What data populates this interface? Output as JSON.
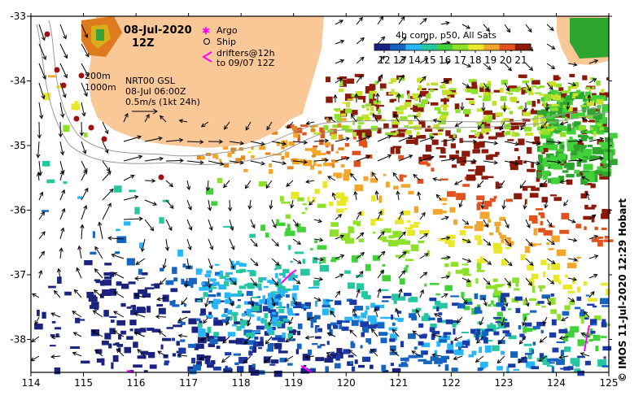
{
  "title": {
    "date": "08-Jul-2020",
    "time": "12Z"
  },
  "legend": {
    "argo": "Argo",
    "ship": "Ship",
    "drifters_line1": "drifters@12h",
    "drifters_line2": "to 09/07 12Z",
    "argo_color": "#ff00ff",
    "drifter_color": "#ff00ff"
  },
  "colorbar": {
    "title": "4h comp, p50, All Sats",
    "ticks": [
      "12",
      "13",
      "14",
      "15",
      "16",
      "17",
      "18",
      "19",
      "20",
      "21"
    ],
    "stops": [
      "#1a237e",
      "#1565c0",
      "#29b6f6",
      "#26c6a0",
      "#43d13a",
      "#8ee02a",
      "#e8e829",
      "#f2a72c",
      "#e0531f",
      "#8b1a0a"
    ]
  },
  "info": {
    "isobath1": "200m",
    "isobath2": "1000m",
    "product": "NRT00 GSL",
    "product_time": "08-Jul 06:00Z",
    "scale": "0.5m/s (1kt 24h)"
  },
  "credit": "© IMOS 11-Jul-2020 12:29 Hobart",
  "axes": {
    "x_ticks": [
      "114",
      "115",
      "116",
      "117",
      "118",
      "119",
      "120",
      "121",
      "122",
      "123",
      "124",
      "125"
    ],
    "y_ticks": [
      "-33",
      "-34",
      "-35",
      "-36",
      "-37",
      "-38"
    ]
  },
  "colors": {
    "land": "#fac797",
    "frame": "#000000",
    "arrow": "#000000",
    "isobath": "#9a9a9a",
    "argo_float": "#a01010"
  }
}
